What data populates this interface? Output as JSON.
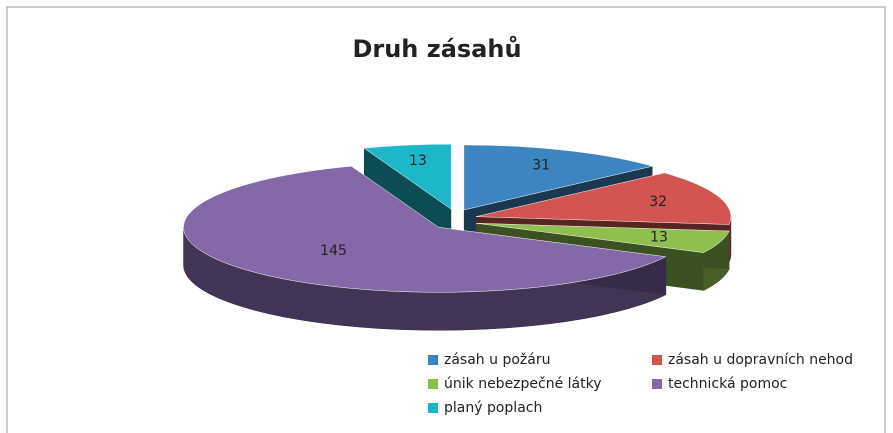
{
  "chart_data": {
    "type": "pie",
    "title": "Druh zásahů",
    "categories": [
      "zásah u požáru",
      "zásah u dopravních nehod",
      "únik nebezpečné látky",
      "technická pomoc",
      "planý poplach"
    ],
    "values": [
      31,
      32,
      13,
      145,
      13
    ],
    "colors": [
      "#3d85c0",
      "#d25552",
      "#8fc04f",
      "#8468a8",
      "#1cb7c8"
    ],
    "legend": "bottom"
  }
}
